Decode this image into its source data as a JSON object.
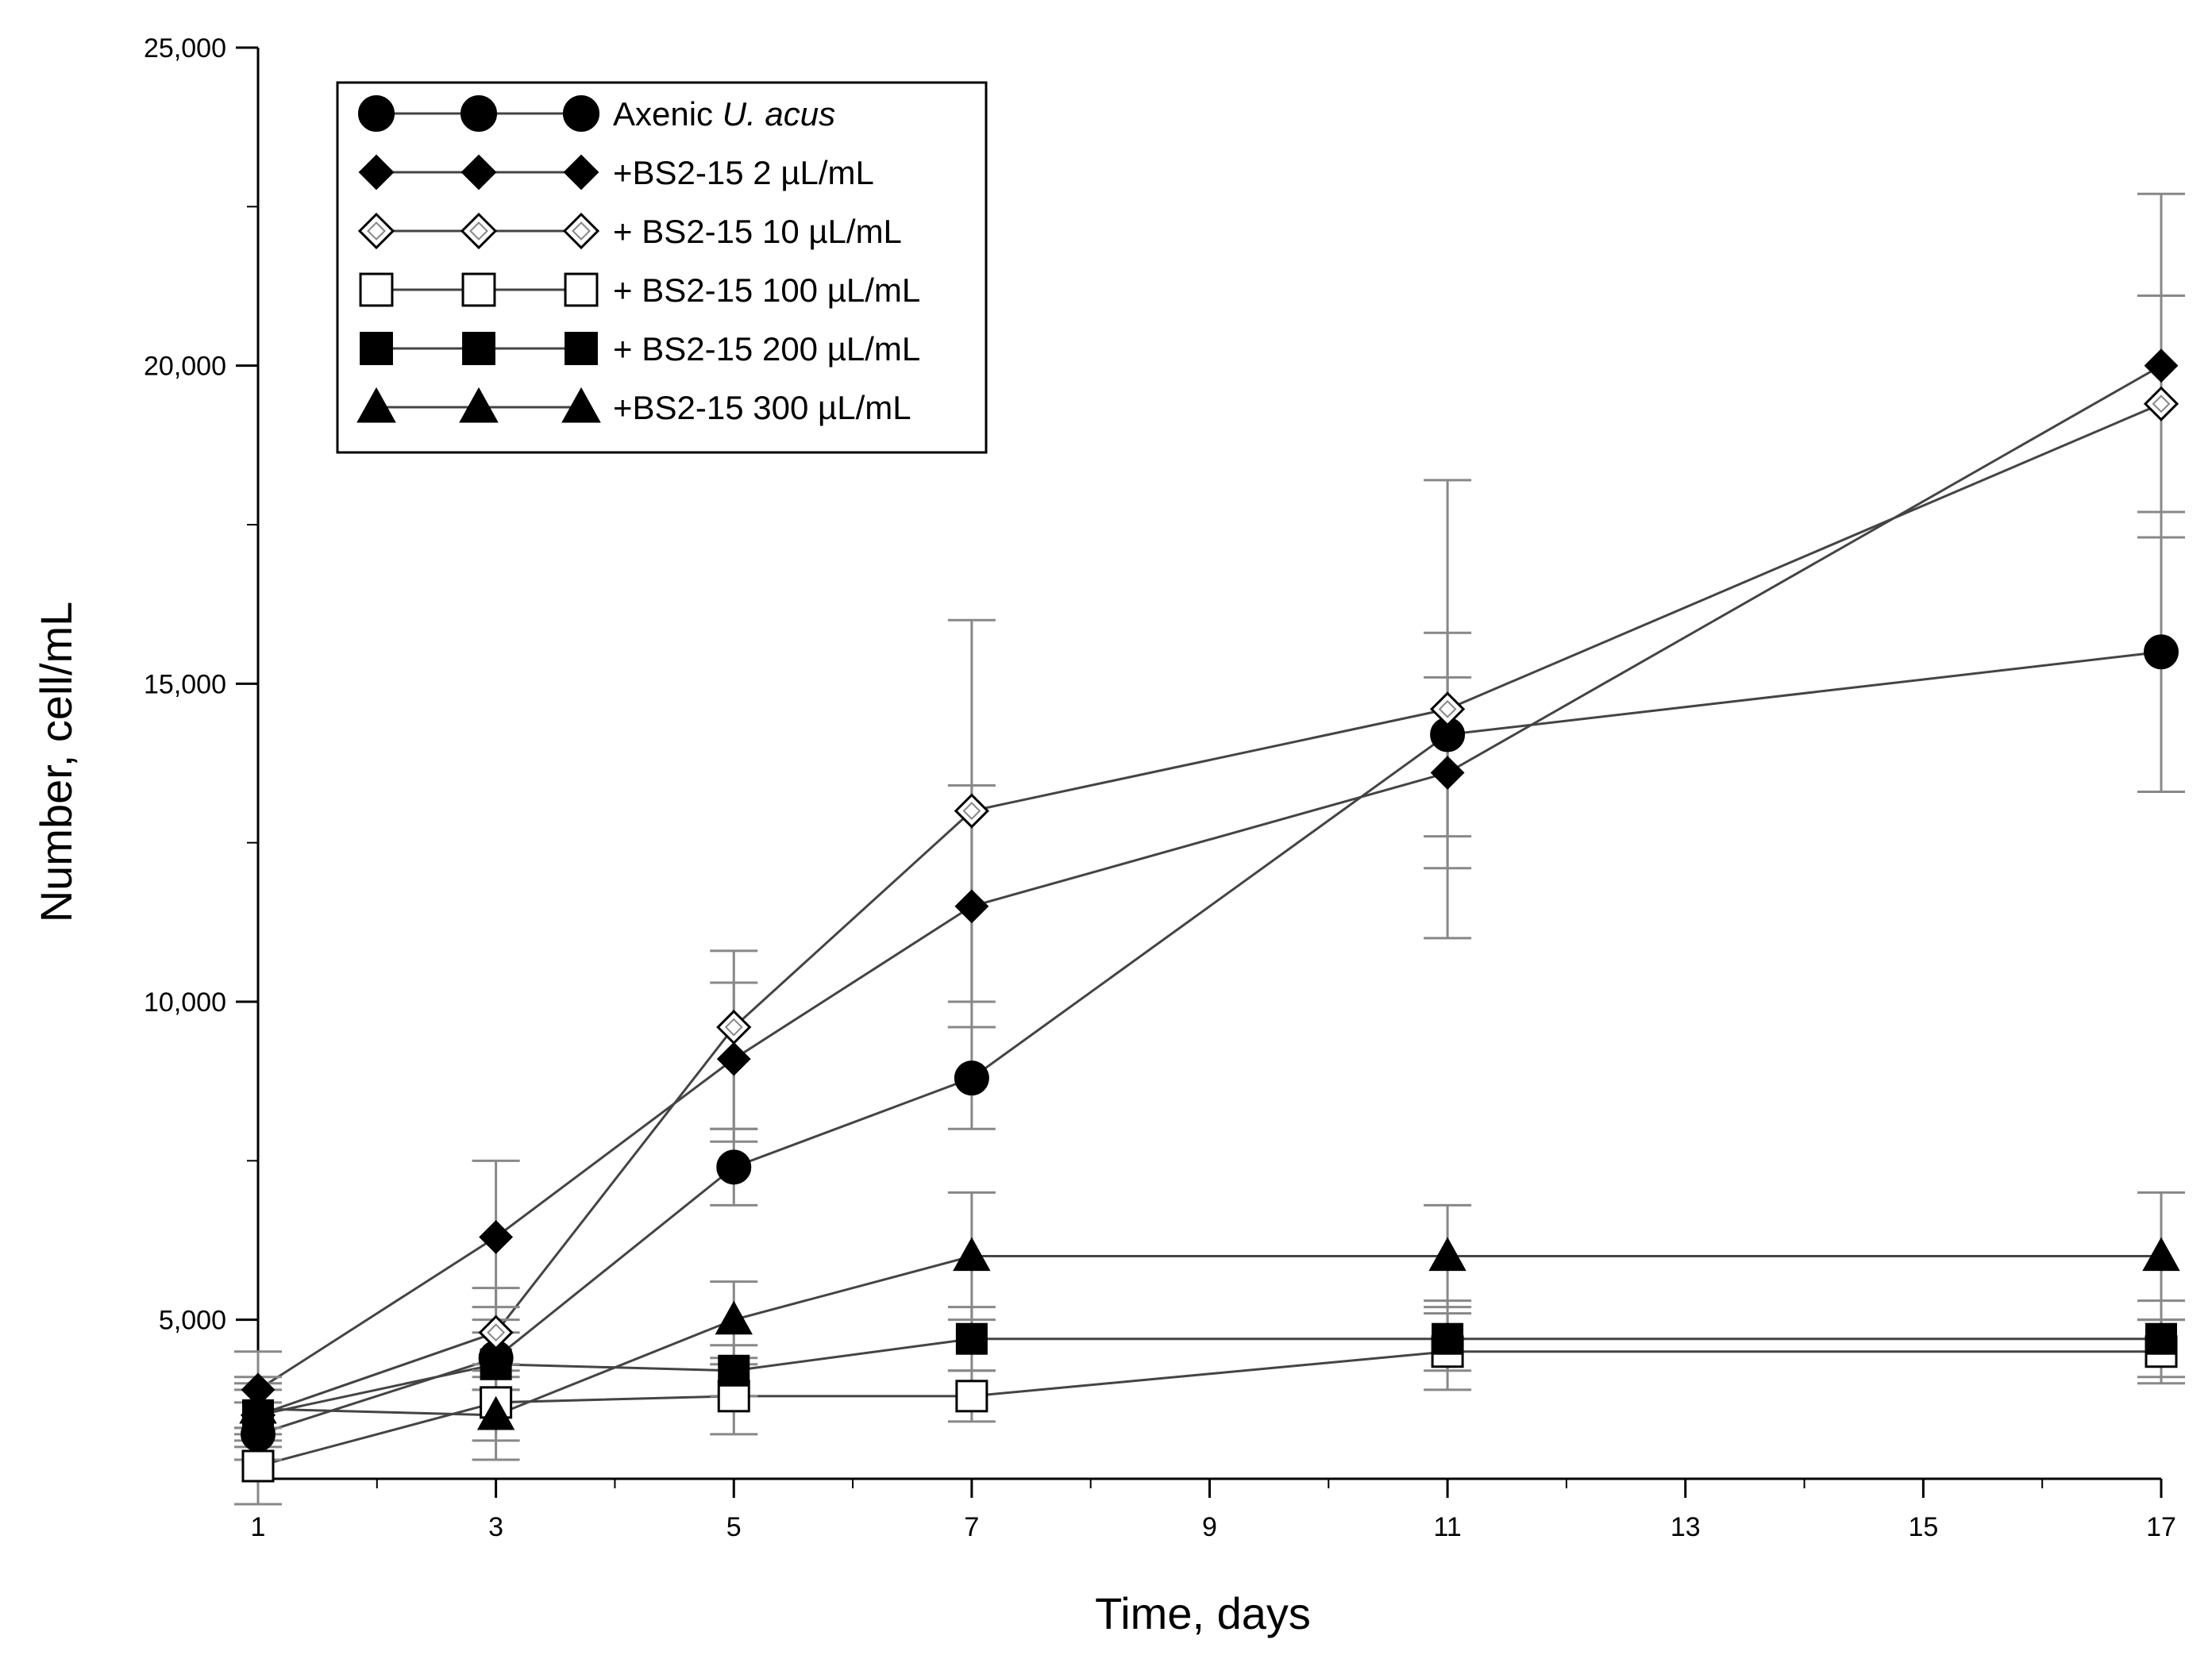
{
  "chart_data": {
    "type": "line",
    "title": "",
    "xlabel": "Time, days",
    "ylabel": "Number, cell/mL",
    "xlim": [
      1,
      17
    ],
    "ylim": [
      2500,
      25000
    ],
    "x_ticks": [
      1,
      3,
      5,
      7,
      9,
      11,
      13,
      15,
      17
    ],
    "x_tick_labels": [
      "1",
      "3",
      "5",
      "7",
      "9",
      "11",
      "13",
      "15",
      "17"
    ],
    "y_ticks": [
      5000,
      10000,
      15000,
      20000,
      25000
    ],
    "y_tick_labels": [
      "5,000",
      "10,000",
      "15,000",
      "20,000",
      "25,000"
    ],
    "x": [
      1,
      3,
      5,
      7,
      11,
      17
    ],
    "legend_position": "top-left",
    "series": [
      {
        "name": "Axenic U. acus",
        "name_prefix": "Axenic ",
        "name_italic": "U. acus",
        "marker": "circle-filled",
        "values": [
          3200,
          4400,
          7400,
          8800,
          14200,
          15500
        ],
        "error_low": [
          2800,
          3900,
          6800,
          8000,
          12600,
          13300
        ],
        "error_high": [
          3700,
          5000,
          8000,
          9600,
          15800,
          17700
        ]
      },
      {
        "name": "+BS2-15 2 µL/mL",
        "marker": "diamond-filled",
        "values": [
          3900,
          6300,
          9100,
          11500,
          13600,
          20000
        ],
        "error_low": [
          3300,
          5200,
          7800,
          10000,
          12100,
          17300
        ],
        "error_high": [
          4500,
          7500,
          10300,
          13400,
          15100,
          22700
        ]
      },
      {
        "name": "+ BS2-15 10 µL/mL",
        "marker": "diamond-open",
        "values": [
          3500,
          4800,
          9600,
          13000,
          14600,
          19400
        ],
        "error_low": [
          3000,
          4100,
          8000,
          9600,
          11000,
          17700
        ],
        "error_high": [
          4100,
          5500,
          10800,
          16000,
          18200,
          21100
        ]
      },
      {
        "name": "+ BS2-15 100 µL/mL",
        "marker": "square-open",
        "values": [
          2700,
          3700,
          3800,
          3800,
          4500,
          4500
        ],
        "error_low": [
          2100,
          3100,
          3200,
          3400,
          3900,
          4000
        ],
        "error_high": [
          3300,
          4300,
          4400,
          4200,
          5100,
          5000
        ]
      },
      {
        "name": "+ BS2-15 200 µL/mL",
        "marker": "square-filled",
        "values": [
          3500,
          4300,
          4200,
          4700,
          4700,
          4700
        ],
        "error_low": [
          3100,
          3900,
          3800,
          4200,
          4200,
          4100
        ],
        "error_high": [
          3900,
          4800,
          4600,
          5200,
          5300,
          5300
        ]
      },
      {
        "name": "+BS2-15 300 µL/mL",
        "marker": "triangle-filled",
        "values": [
          3600,
          3500,
          5000,
          6000,
          6000,
          6000
        ],
        "error_low": [
          3200,
          2800,
          4300,
          5000,
          5200,
          5000
        ],
        "error_high": [
          4000,
          4200,
          5600,
          7000,
          6800,
          7000
        ]
      }
    ]
  }
}
